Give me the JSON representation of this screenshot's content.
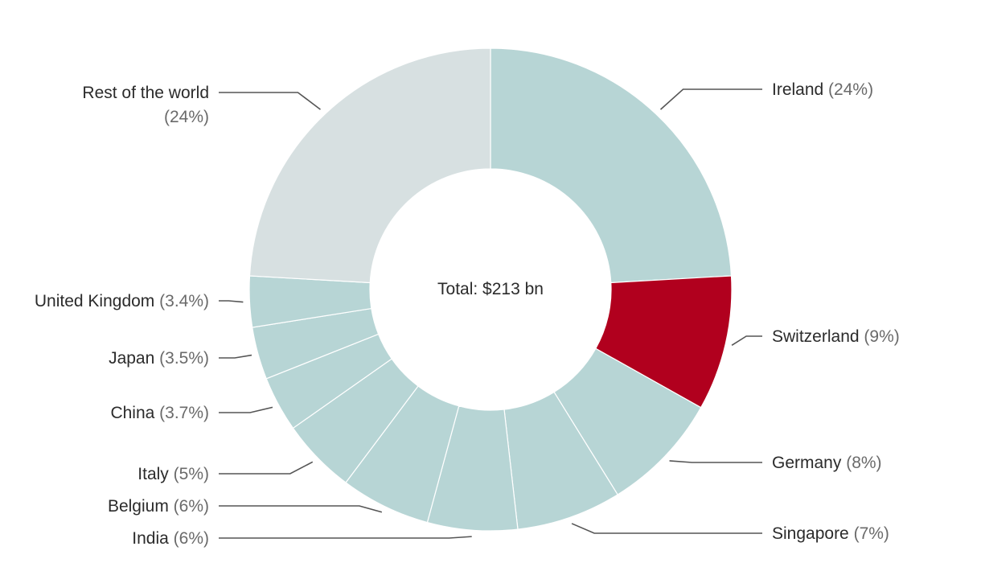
{
  "chart_data": {
    "type": "pie",
    "variant": "donut",
    "center_label": "Total: $213 bn",
    "colors": {
      "default": "#b7d5d5",
      "highlight": "#b1001e",
      "rest": "#d7e0e1"
    },
    "slices": [
      {
        "name": "Ireland",
        "pct_label": "(24%)",
        "value": 24,
        "color": "#b7d5d5"
      },
      {
        "name": "Switzerland",
        "pct_label": "(9%)",
        "value": 9,
        "color": "#b1001e"
      },
      {
        "name": "Germany",
        "pct_label": "(8%)",
        "value": 8,
        "color": "#b7d5d5"
      },
      {
        "name": "Singapore",
        "pct_label": "(7%)",
        "value": 7,
        "color": "#b7d5d5"
      },
      {
        "name": "India",
        "pct_label": "(6%)",
        "value": 6,
        "color": "#b7d5d5"
      },
      {
        "name": "Belgium",
        "pct_label": "(6%)",
        "value": 6,
        "color": "#b7d5d5"
      },
      {
        "name": "Italy",
        "pct_label": "(5%)",
        "value": 5,
        "color": "#b7d5d5"
      },
      {
        "name": "China",
        "pct_label": "(3.7%)",
        "value": 3.7,
        "color": "#b7d5d5"
      },
      {
        "name": "Japan",
        "pct_label": "(3.5%)",
        "value": 3.5,
        "color": "#b7d5d5"
      },
      {
        "name": "United Kingdom",
        "pct_label": "(3.4%)",
        "value": 3.4,
        "color": "#b7d5d5"
      },
      {
        "name": "Rest of the world",
        "pct_label": "(24%)",
        "value": 24,
        "color": "#d7e0e1"
      }
    ]
  }
}
